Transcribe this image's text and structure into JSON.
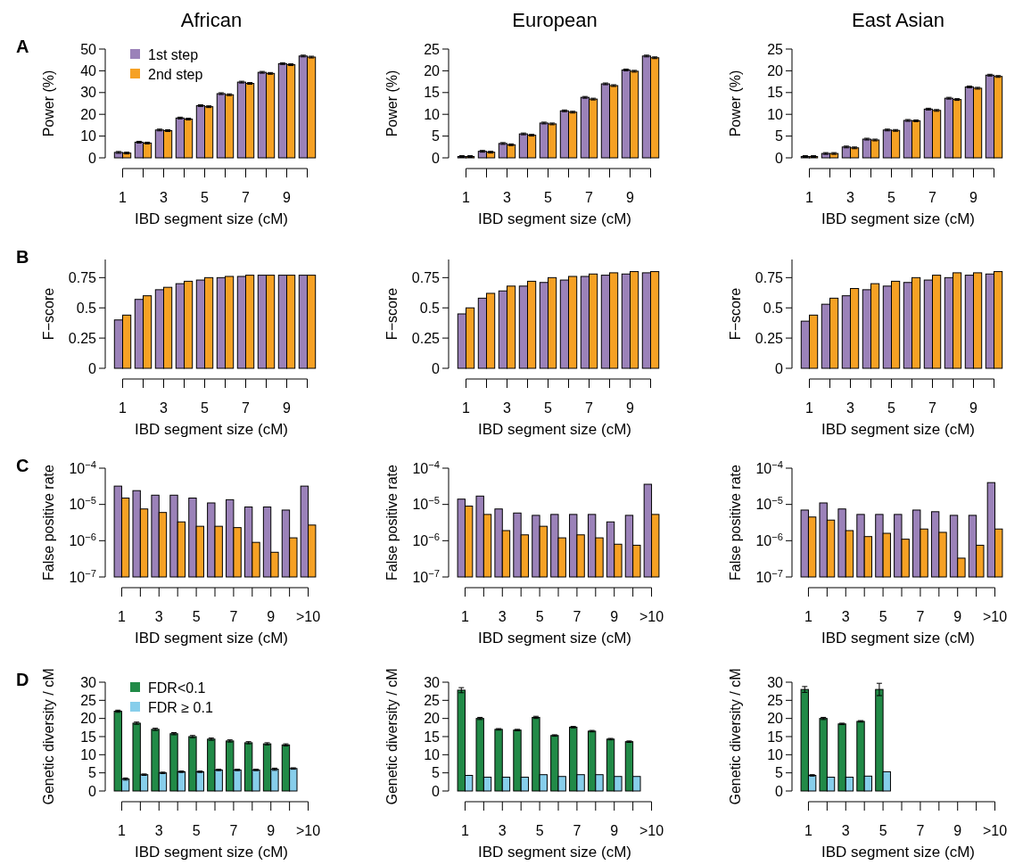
{
  "chart_data": [
    {
      "type": "bar",
      "title": "African",
      "ylabel": "Power (%)",
      "xlabel": "IBD segment size (cM)",
      "annotations": [
        "A"
      ],
      "legend": "top left",
      "categories": [
        "1",
        null,
        "3",
        null,
        "5",
        null,
        "7",
        null,
        "9",
        null
      ],
      "ylim": [
        0,
        50
      ],
      "yticks": [
        0,
        10,
        20,
        30,
        40,
        50
      ],
      "series": [
        {
          "name": "1st step",
          "color": "#9b82b9",
          "values": [
            2.5,
            7.2,
            12.8,
            18.3,
            24,
            29.5,
            34.8,
            39.3,
            43.3,
            46.8
          ],
          "errors": [
            0.4,
            0.4,
            0.4,
            0.4,
            0.4,
            0.4,
            0.4,
            0.4,
            0.4,
            0.4
          ]
        },
        {
          "name": "2nd step",
          "color": "#f6a124",
          "values": [
            2.2,
            6.8,
            12.5,
            17.8,
            23.5,
            29,
            34.2,
            38.8,
            42.8,
            46.3
          ],
          "errors": [
            0.4,
            0.4,
            0.4,
            0.4,
            0.4,
            0.4,
            0.4,
            0.4,
            0.4,
            0.4
          ]
        }
      ]
    },
    {
      "type": "bar",
      "title": "European",
      "ylabel": "Power (%)",
      "xlabel": "IBD segment size (cM)",
      "categories": [
        "1",
        null,
        "3",
        null,
        "5",
        null,
        "7",
        null,
        "9",
        null
      ],
      "ylim": [
        0,
        25
      ],
      "yticks": [
        0,
        5,
        10,
        15,
        20,
        25
      ],
      "series": [
        {
          "color": "#9b82b9",
          "values": [
            0.3,
            1.5,
            3.3,
            5.5,
            8,
            10.8,
            13.9,
            17,
            20.2,
            23.4
          ],
          "errors": [
            0.2,
            0.2,
            0.2,
            0.2,
            0.2,
            0.2,
            0.2,
            0.2,
            0.2,
            0.2
          ]
        },
        {
          "color": "#f6a124",
          "values": [
            0.3,
            1.3,
            3,
            5.2,
            7.8,
            10.5,
            13.5,
            16.6,
            19.9,
            23
          ],
          "errors": [
            0.2,
            0.2,
            0.2,
            0.2,
            0.2,
            0.2,
            0.2,
            0.2,
            0.2,
            0.2
          ]
        }
      ]
    },
    {
      "type": "bar",
      "title": "East Asian",
      "ylabel": "Power (%)",
      "xlabel": "IBD segment size (cM)",
      "categories": [
        "1",
        null,
        "3",
        null,
        "5",
        null,
        "7",
        null,
        "9",
        null
      ],
      "ylim": [
        0,
        25
      ],
      "yticks": [
        0,
        5,
        10,
        15,
        20,
        25
      ],
      "series": [
        {
          "color": "#9b82b9",
          "values": [
            0.3,
            1,
            2.5,
            4.3,
            6.4,
            8.6,
            11.2,
            13.7,
            16.3,
            19
          ],
          "errors": [
            0.2,
            0.2,
            0.2,
            0.2,
            0.2,
            0.2,
            0.2,
            0.2,
            0.2,
            0.2
          ]
        },
        {
          "color": "#f6a124",
          "values": [
            0.3,
            1,
            2.3,
            4.1,
            6.3,
            8.5,
            10.9,
            13.4,
            16,
            18.7
          ],
          "errors": [
            0.2,
            0.2,
            0.2,
            0.2,
            0.2,
            0.2,
            0.2,
            0.2,
            0.2,
            0.2
          ]
        }
      ]
    },
    {
      "type": "bar",
      "ylabel": "F−score",
      "xlabel": "IBD segment size (cM)",
      "annotations": [
        "B"
      ],
      "categories": [
        "1",
        null,
        "3",
        null,
        "5",
        null,
        "7",
        null,
        "9",
        null
      ],
      "ylim": [
        0,
        0.9
      ],
      "yticks": [
        0,
        0.25,
        0.5,
        0.75
      ],
      "series": [
        {
          "color": "#9b82b9",
          "values": [
            0.4,
            0.57,
            0.65,
            0.7,
            0.73,
            0.75,
            0.76,
            0.77,
            0.77,
            0.77
          ]
        },
        {
          "color": "#f6a124",
          "values": [
            0.44,
            0.6,
            0.67,
            0.72,
            0.75,
            0.76,
            0.77,
            0.77,
            0.77,
            0.77
          ]
        }
      ]
    },
    {
      "type": "bar",
      "ylabel": "F−score",
      "xlabel": "IBD segment size (cM)",
      "categories": [
        "1",
        null,
        "3",
        null,
        "5",
        null,
        "7",
        null,
        "9",
        null
      ],
      "ylim": [
        0,
        0.9
      ],
      "yticks": [
        0,
        0.25,
        0.5,
        0.75
      ],
      "series": [
        {
          "color": "#9b82b9",
          "values": [
            0.45,
            0.58,
            0.64,
            0.68,
            0.71,
            0.73,
            0.76,
            0.77,
            0.78,
            0.79
          ]
        },
        {
          "color": "#f6a124",
          "values": [
            0.5,
            0.62,
            0.68,
            0.72,
            0.75,
            0.76,
            0.78,
            0.79,
            0.8,
            0.8
          ]
        }
      ]
    },
    {
      "type": "bar",
      "ylabel": "F−score",
      "xlabel": "IBD segment size (cM)",
      "categories": [
        "1",
        null,
        "3",
        null,
        "5",
        null,
        "7",
        null,
        "9",
        null
      ],
      "ylim": [
        0,
        0.9
      ],
      "yticks": [
        0,
        0.25,
        0.5,
        0.75
      ],
      "series": [
        {
          "color": "#9b82b9",
          "values": [
            0.39,
            0.53,
            0.6,
            0.65,
            0.68,
            0.71,
            0.73,
            0.75,
            0.77,
            0.78
          ]
        },
        {
          "color": "#f6a124",
          "values": [
            0.44,
            0.58,
            0.66,
            0.7,
            0.72,
            0.75,
            0.77,
            0.79,
            0.79,
            0.8
          ]
        }
      ]
    },
    {
      "type": "bar",
      "ylabel": "False positive rate",
      "xlabel": "IBD segment size (cM)",
      "annotations": [
        "C"
      ],
      "log": "y",
      "categories": [
        "1",
        null,
        "3",
        null,
        "5",
        null,
        "7",
        null,
        "9",
        null,
        ">10"
      ],
      "ylim": [
        1e-07,
        0.0001
      ],
      "yticks": [
        {
          "value": 1e-07,
          "label": "10$^{−7}$"
        },
        {
          "value": 1e-06,
          "label": "10$^{−6}$"
        },
        {
          "value": 1e-05,
          "label": "10$^{−5}$"
        },
        {
          "value": 0.0001,
          "label": "10$^{−4}$"
        }
      ],
      "series": [
        {
          "color": "#9b82b9",
          "values": [
            3.2e-05,
            2.4e-05,
            1.8e-05,
            1.8e-05,
            1.5e-05,
            1.1e-05,
            1.35e-05,
            8.5e-06,
            8.5e-06,
            7e-06,
            3.2e-05
          ]
        },
        {
          "color": "#f6a124",
          "values": [
            1.5e-05,
            7.5e-06,
            6e-06,
            3.3e-06,
            2.5e-06,
            2.5e-06,
            2.3e-06,
            9e-07,
            4.8e-07,
            1.2e-06,
            2.7e-06
          ]
        }
      ]
    },
    {
      "type": "bar",
      "ylabel": "False positive rate",
      "xlabel": "IBD segment size (cM)",
      "log": "y",
      "categories": [
        "1",
        null,
        "3",
        null,
        "5",
        null,
        "7",
        null,
        "9",
        null,
        ">10"
      ],
      "ylim": [
        1e-07,
        0.0001
      ],
      "yticks": [
        {
          "value": 1e-07,
          "label": "10$^{−7}$"
        },
        {
          "value": 1e-06,
          "label": "10$^{−6}$"
        },
        {
          "value": 1e-05,
          "label": "10$^{−5}$"
        },
        {
          "value": 0.0001,
          "label": "10$^{−4}$"
        }
      ],
      "series": [
        {
          "color": "#9b82b9",
          "values": [
            1.4e-05,
            1.7e-05,
            7.5e-06,
            5.8e-06,
            5e-06,
            5.3e-06,
            5.3e-06,
            5.3e-06,
            3.3e-06,
            5e-06,
            3.6e-05
          ]
        },
        {
          "color": "#f6a124",
          "values": [
            9e-06,
            5.3e-06,
            1.9e-06,
            1.45e-06,
            2.5e-06,
            1.2e-06,
            1.45e-06,
            1.2e-06,
            8e-07,
            7.5e-07,
            5.3e-06
          ]
        }
      ]
    },
    {
      "type": "bar",
      "ylabel": "False positive rate",
      "xlabel": "IBD segment size (cM)",
      "log": "y",
      "categories": [
        "1",
        null,
        "3",
        null,
        "5",
        null,
        "7",
        null,
        "9",
        null,
        ">10"
      ],
      "ylim": [
        1e-07,
        0.0001
      ],
      "yticks": [
        {
          "value": 1e-07,
          "label": "10$^{−7}$"
        },
        {
          "value": 1e-06,
          "label": "10$^{−6}$"
        },
        {
          "value": 1e-05,
          "label": "10$^{−5}$"
        },
        {
          "value": 0.0001,
          "label": "10$^{−4}$"
        }
      ],
      "series": [
        {
          "color": "#9b82b9",
          "values": [
            7e-06,
            1.1e-05,
            7.5e-06,
            5.3e-06,
            5.3e-06,
            5.3e-06,
            7e-06,
            6.3e-06,
            5e-06,
            5e-06,
            4e-05
          ]
        },
        {
          "color": "#f6a124",
          "values": [
            4.5e-06,
            3.7e-06,
            1.9e-06,
            1.3e-06,
            1.6e-06,
            1.1e-06,
            2.1e-06,
            1.7e-06,
            3.3e-07,
            7.5e-07,
            2.1e-06
          ]
        }
      ]
    },
    {
      "type": "bar",
      "ylabel": "Genetic diversity / cM",
      "xlabel": "IBD segment size (cM)",
      "annotations": [
        "D"
      ],
      "legend": "top left",
      "categories": [
        "1",
        null,
        "3",
        null,
        "5",
        null,
        "7",
        null,
        "9",
        null,
        ">10"
      ],
      "ylim": [
        0,
        30
      ],
      "yticks": [
        0,
        5,
        10,
        15,
        20,
        25,
        30
      ],
      "series": [
        {
          "name": "FDR<0.1",
          "color": "#218a47",
          "values": [
            22,
            18.7,
            17,
            15.8,
            15,
            14.3,
            13.8,
            13.3,
            13,
            12.7,
            null
          ],
          "errors": [
            0.3,
            0.3,
            0.3,
            0.3,
            0.3,
            0.3,
            0.3,
            0.3,
            0.3,
            0.3,
            null
          ]
        },
        {
          "name": "FDR ≥ 0.1",
          "color": "#87ceeb",
          "values": [
            3.3,
            4.5,
            5,
            5.3,
            5.3,
            5.8,
            5.8,
            5.8,
            6,
            6.2,
            null
          ],
          "errors": [
            0.3,
            0.2,
            0.2,
            0.2,
            0.2,
            0.2,
            0.2,
            0.2,
            0.3,
            0.2,
            null
          ]
        }
      ]
    },
    {
      "type": "bar",
      "ylabel": "Genetic diversity / cM",
      "xlabel": "IBD segment size (cM)",
      "categories": [
        "1",
        null,
        "3",
        null,
        "5",
        null,
        "7",
        null,
        "9",
        null,
        ">10"
      ],
      "ylim": [
        0,
        30
      ],
      "yticks": [
        0,
        5,
        10,
        15,
        20,
        25,
        30
      ],
      "series": [
        {
          "color": "#218a47",
          "values": [
            27.8,
            20,
            17,
            16.8,
            20.3,
            15.3,
            17.6,
            16.5,
            14.3,
            13.6,
            null
          ],
          "errors": [
            0.7,
            0.3,
            0.2,
            0.2,
            0.3,
            0.2,
            0.2,
            0.2,
            0.2,
            0.2,
            null
          ]
        },
        {
          "color": "#87ceeb",
          "values": [
            4.3,
            3.8,
            3.8,
            3.8,
            4.5,
            4,
            4.5,
            4.5,
            4,
            4,
            null
          ]
        }
      ]
    },
    {
      "type": "bar",
      "ylabel": "Genetic diversity / cM",
      "xlabel": "IBD segment size (cM)",
      "categories": [
        "1",
        null,
        "3",
        null,
        "5",
        null,
        "7",
        null,
        "9",
        null,
        ">10"
      ],
      "ylim": [
        0,
        30
      ],
      "yticks": [
        0,
        5,
        10,
        15,
        20,
        25,
        30
      ],
      "series": [
        {
          "color": "#218a47",
          "values": [
            28,
            20,
            18.5,
            19.2,
            28,
            null,
            null,
            null,
            null,
            null,
            null
          ],
          "errors": [
            0.8,
            0.3,
            0.2,
            0.2,
            1.7,
            null,
            null,
            null,
            null,
            null,
            null
          ]
        },
        {
          "color": "#87ceeb",
          "values": [
            4.3,
            3.8,
            3.8,
            4.1,
            5.3,
            null,
            null,
            null,
            null,
            null,
            null
          ],
          "errors": [
            0.2,
            null,
            null,
            null,
            null,
            null,
            null,
            null,
            null,
            null,
            null
          ]
        }
      ]
    }
  ]
}
